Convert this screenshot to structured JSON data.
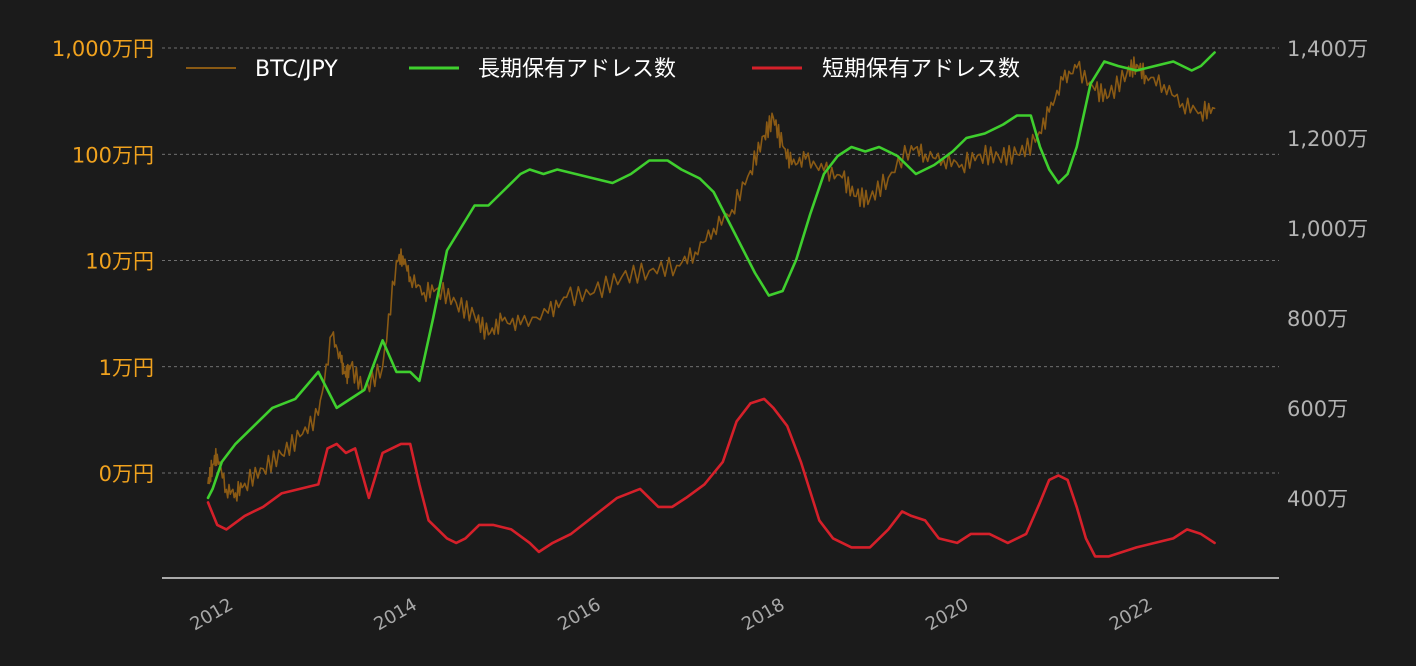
{
  "colors": {
    "background": "#1b1b1b",
    "btc": "#8a5a14",
    "long_term": "#3fcf2e",
    "short_term": "#d5202a",
    "left_axis_text": "#f0a21e",
    "right_axis_text": "#b3b3b3"
  },
  "chart_data": {
    "type": "line",
    "grid": true,
    "legend_position": "top-left",
    "x_ticks": [
      "2012",
      "2014",
      "2016",
      "2018",
      "2020",
      "2022"
    ],
    "x_range": [
      2011.3,
      2023.45
    ],
    "left_axis": {
      "scale": "log",
      "ylim": [
        1000,
        10000000
      ],
      "ticks": [
        {
          "value": 10000000,
          "label": "1,000万円"
        },
        {
          "value": 1000000,
          "label": "100万円"
        },
        {
          "value": 100000,
          "label": "10万円"
        },
        {
          "value": 10000,
          "label": "1万円"
        },
        {
          "value": 1000,
          "label": "0万円"
        }
      ]
    },
    "right_axis": {
      "scale": "linear",
      "ylim": [
        2220000,
        14000000
      ],
      "ticks": [
        {
          "value": 14000000,
          "label": "1,400万"
        },
        {
          "value": 12000000,
          "label": "1,200万"
        },
        {
          "value": 10000000,
          "label": "1,000万"
        },
        {
          "value": 8000000,
          "label": "800万"
        },
        {
          "value": 6000000,
          "label": "600万"
        },
        {
          "value": 4000000,
          "label": "400万"
        }
      ]
    },
    "series": [
      {
        "name": "BTC/JPY",
        "axis": "left",
        "color_key": "btc",
        "x": [
          2011.8,
          2011.85,
          2011.9,
          2012.0,
          2012.1,
          2012.2,
          2012.4,
          2012.6,
          2012.8,
          2013.0,
          2013.15,
          2013.25,
          2013.3,
          2013.35,
          2013.5,
          2013.7,
          2013.85,
          2013.92,
          2014.0,
          2014.15,
          2014.3,
          2014.5,
          2014.7,
          2014.85,
          2015.0,
          2015.2,
          2015.5,
          2015.7,
          2016.0,
          2016.3,
          2016.6,
          2016.9,
          2017.1,
          2017.3,
          2017.5,
          2017.7,
          2017.85,
          2017.95,
          2018.05,
          2018.15,
          2018.3,
          2018.5,
          2018.7,
          2018.85,
          2019.0,
          2019.2,
          2019.45,
          2019.6,
          2019.8,
          2020.0,
          2020.2,
          2020.4,
          2020.6,
          2020.8,
          2020.95,
          2021.1,
          2021.25,
          2021.45,
          2021.6,
          2021.8,
          2021.9,
          2022.0,
          2022.2,
          2022.4,
          2022.6,
          2022.75
        ],
        "values": [
          800,
          1200,
          1500,
          700,
          650,
          800,
          1100,
          1500,
          2200,
          3500,
          20000,
          11000,
          8000,
          10000,
          6000,
          10000,
          100000,
          110000,
          70000,
          50000,
          55000,
          40000,
          30000,
          20000,
          27000,
          25000,
          32000,
          45000,
          50000,
          70000,
          80000,
          90000,
          120000,
          200000,
          300000,
          700000,
          1500000,
          2200000,
          1200000,
          800000,
          900000,
          700000,
          600000,
          400000,
          380000,
          600000,
          1200000,
          1000000,
          900000,
          800000,
          1000000,
          950000,
          1000000,
          1300000,
          2500000,
          5000000,
          6500000,
          4000000,
          3500000,
          6000000,
          7000000,
          5500000,
          4500000,
          3000000,
          2500000,
          2700000
        ]
      },
      {
        "name": "長期保有アドレス数",
        "axis": "right",
        "color_key": "long_term",
        "x": [
          2011.8,
          2011.85,
          2011.95,
          2012.1,
          2012.3,
          2012.5,
          2012.75,
          2013.0,
          2013.2,
          2013.35,
          2013.5,
          2013.7,
          2013.85,
          2014.0,
          2014.1,
          2014.25,
          2014.4,
          2014.55,
          2014.7,
          2014.85,
          2015.0,
          2015.2,
          2015.3,
          2015.45,
          2015.6,
          2015.8,
          2016.0,
          2016.2,
          2016.4,
          2016.6,
          2016.8,
          2016.95,
          2017.15,
          2017.3,
          2017.45,
          2017.6,
          2017.75,
          2017.9,
          2018.05,
          2018.2,
          2018.35,
          2018.5,
          2018.65,
          2018.8,
          2018.95,
          2019.1,
          2019.3,
          2019.5,
          2019.7,
          2019.9,
          2020.05,
          2020.25,
          2020.45,
          2020.6,
          2020.75,
          2020.85,
          2020.95,
          2021.05,
          2021.15,
          2021.25,
          2021.4,
          2021.55,
          2021.7,
          2021.9,
          2022.1,
          2022.3,
          2022.5,
          2022.6,
          2022.75
        ],
        "values": [
          4000000,
          4200000,
          4800000,
          5200000,
          5600000,
          6000000,
          6200000,
          6800000,
          6000000,
          6200000,
          6400000,
          7500000,
          6800000,
          6800000,
          6600000,
          8000000,
          9500000,
          10000000,
          10500000,
          10500000,
          10800000,
          11200000,
          11300000,
          11200000,
          11300000,
          11200000,
          11100000,
          11000000,
          11200000,
          11500000,
          11500000,
          11300000,
          11100000,
          10800000,
          10200000,
          9600000,
          9000000,
          8500000,
          8600000,
          9300000,
          10300000,
          11200000,
          11600000,
          11800000,
          11700000,
          11800000,
          11600000,
          11200000,
          11400000,
          11700000,
          12000000,
          12100000,
          12300000,
          12500000,
          12500000,
          11800000,
          11300000,
          11000000,
          11200000,
          11800000,
          13200000,
          13700000,
          13600000,
          13500000,
          13600000,
          13700000,
          13500000,
          13600000,
          13900000
        ]
      },
      {
        "name": "短期保有アドレス数",
        "axis": "right",
        "color_key": "short_term",
        "x": [
          2011.8,
          2011.9,
          2012.0,
          2012.2,
          2012.4,
          2012.6,
          2012.8,
          2013.0,
          2013.1,
          2013.2,
          2013.3,
          2013.4,
          2013.55,
          2013.7,
          2013.8,
          2013.9,
          2014.0,
          2014.1,
          2014.2,
          2014.4,
          2014.5,
          2014.6,
          2014.75,
          2014.9,
          2015.1,
          2015.3,
          2015.4,
          2015.55,
          2015.75,
          2016.0,
          2016.25,
          2016.5,
          2016.7,
          2016.85,
          2017.0,
          2017.2,
          2017.4,
          2017.55,
          2017.7,
          2017.85,
          2017.95,
          2018.1,
          2018.25,
          2018.45,
          2018.6,
          2018.8,
          2019.0,
          2019.2,
          2019.35,
          2019.45,
          2019.6,
          2019.75,
          2019.95,
          2020.1,
          2020.3,
          2020.5,
          2020.7,
          2020.85,
          2020.95,
          2021.05,
          2021.15,
          2021.25,
          2021.35,
          2021.45,
          2021.6,
          2021.75,
          2021.9,
          2022.1,
          2022.3,
          2022.45,
          2022.6,
          2022.75
        ],
        "values": [
          3900000,
          3400000,
          3300000,
          3600000,
          3800000,
          4100000,
          4200000,
          4300000,
          5100000,
          5200000,
          5000000,
          5100000,
          4000000,
          5000000,
          5100000,
          5200000,
          5200000,
          4300000,
          3500000,
          3100000,
          3000000,
          3100000,
          3400000,
          3400000,
          3300000,
          3000000,
          2800000,
          3000000,
          3200000,
          3600000,
          4000000,
          4200000,
          3800000,
          3800000,
          4000000,
          4300000,
          4800000,
          5700000,
          6100000,
          6200000,
          6000000,
          5600000,
          4800000,
          3500000,
          3100000,
          2900000,
          2900000,
          3300000,
          3700000,
          3600000,
          3500000,
          3100000,
          3000000,
          3200000,
          3200000,
          3000000,
          3200000,
          3900000,
          4400000,
          4500000,
          4400000,
          3800000,
          3100000,
          2700000,
          2700000,
          2800000,
          2900000,
          3000000,
          3100000,
          3300000,
          3200000,
          3000000
        ]
      }
    ]
  }
}
